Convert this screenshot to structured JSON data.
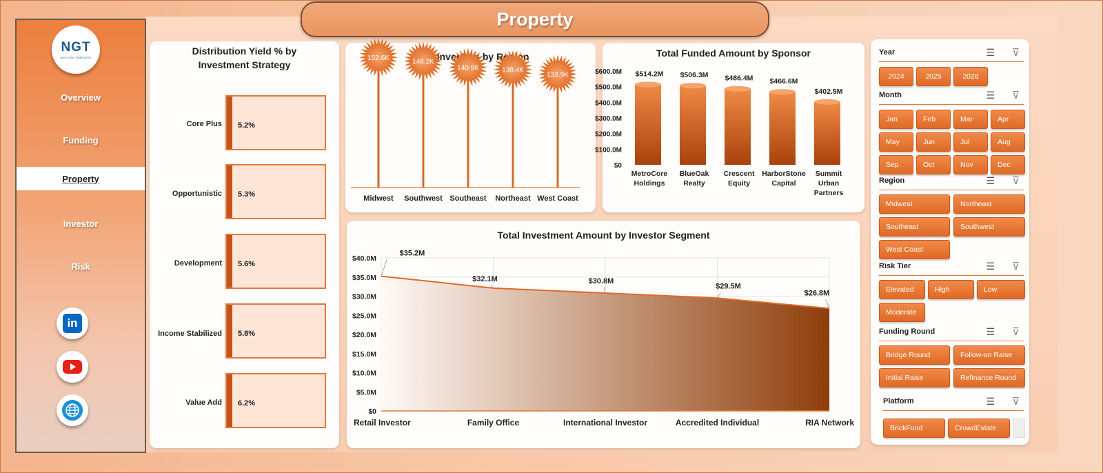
{
  "page_title": "Property",
  "colors": {
    "accent": "#e8722f",
    "accent_dark": "#b4460f",
    "panel": "#fffdfb"
  },
  "sidebar": {
    "logo_text": "NGT",
    "logo_subtext": "NEXT GEN TEMPLATES",
    "items": [
      {
        "label": "Overview",
        "active": false
      },
      {
        "label": "Funding",
        "active": false
      },
      {
        "label": "Property",
        "active": true
      },
      {
        "label": "Investor",
        "active": false
      },
      {
        "label": "Risk",
        "active": false
      }
    ],
    "social": [
      {
        "icon": "linkedin-icon",
        "label": "in"
      },
      {
        "icon": "youtube-icon"
      },
      {
        "icon": "globe-icon"
      }
    ]
  },
  "yield_card": {
    "title_line1": "Distribution Yield % by",
    "title_line2": "Investment Strategy",
    "items": [
      {
        "label": "Core Plus",
        "value": "5.2%"
      },
      {
        "label": "Opportunistic",
        "value": "5.3%"
      },
      {
        "label": "Development",
        "value": "5.6%"
      },
      {
        "label": "Income Stabilized",
        "value": "5.8%"
      },
      {
        "label": "Value Add",
        "value": "6.2%"
      }
    ]
  },
  "chart_data": [
    {
      "id": "investors",
      "type": "bar",
      "title": "Total Investors by Region",
      "categories": [
        "Midwest",
        "Southwest",
        "Southeast",
        "Northeast",
        "West Coast"
      ],
      "values": [
        152.6,
        148.2,
        140.9,
        138.4,
        132.9
      ],
      "labels": [
        "152.6K",
        "148.2K",
        "140.9K",
        "138.4K",
        "132.9K"
      ]
    },
    {
      "id": "sponsor",
      "type": "bar",
      "title": "Total Funded Amount by Sponsor",
      "categories": [
        [
          "MetroCore",
          "Holdings"
        ],
        [
          "BlueOak",
          "Realty"
        ],
        [
          "Crescent",
          "Equity"
        ],
        [
          "HarborStone",
          "Capital"
        ],
        [
          "Summit",
          "Urban",
          "Partners"
        ]
      ],
      "values": [
        514.2,
        506.3,
        486.4,
        466.6,
        402.5
      ],
      "labels": [
        "$514.2M",
        "$506.3M",
        "$486.4M",
        "$466.6M",
        "$402.5M"
      ],
      "yticks": [
        "$0",
        "$100.0M",
        "$200.0M",
        "$300.0M",
        "$400.0M",
        "$500.0M",
        "$600.0M"
      ],
      "ylim": [
        0,
        600
      ]
    },
    {
      "id": "segment",
      "type": "area",
      "title": "Total Investment Amount by Investor Segment",
      "categories": [
        "Retail Investor",
        "Family Office",
        "International Investor",
        "Accredited Individual",
        "RIA Network"
      ],
      "values": [
        35.2,
        32.1,
        30.8,
        29.5,
        26.8
      ],
      "labels": [
        "$35.2M",
        "$32.1M",
        "$30.8M",
        "$29.5M",
        "$26.8M"
      ],
      "yticks": [
        "$0",
        "$5.0M",
        "$10.0M",
        "$15.0M",
        "$20.0M",
        "$25.0M",
        "$30.0M",
        "$35.0M",
        "$40.0M"
      ],
      "ylim": [
        0,
        40
      ],
      "grid": true
    }
  ],
  "slicers": {
    "year": {
      "label": "Year",
      "options": [
        "2024",
        "2025",
        "2026"
      ]
    },
    "month": {
      "label": "Month",
      "options": [
        "Jan",
        "Feb",
        "Mar",
        "Apr",
        "May",
        "Jun",
        "Jul",
        "Aug",
        "Sep",
        "Oct",
        "Nov",
        "Dec"
      ]
    },
    "region": {
      "label": "Region",
      "options": [
        "Midwest",
        "Northeast",
        "Southeast",
        "Southwest",
        "West Coast"
      ]
    },
    "risk": {
      "label": "Risk Tier",
      "options": [
        "Elevated",
        "High",
        "Low",
        "Moderate"
      ]
    },
    "funding": {
      "label": "Funding Round",
      "options": [
        "Bridge Round",
        "Follow-on Raise",
        "Initial Raise",
        "Refinance Round"
      ]
    },
    "platform": {
      "label": "Platform",
      "options": [
        "BrickFund",
        "CrowdEstate"
      ]
    }
  }
}
